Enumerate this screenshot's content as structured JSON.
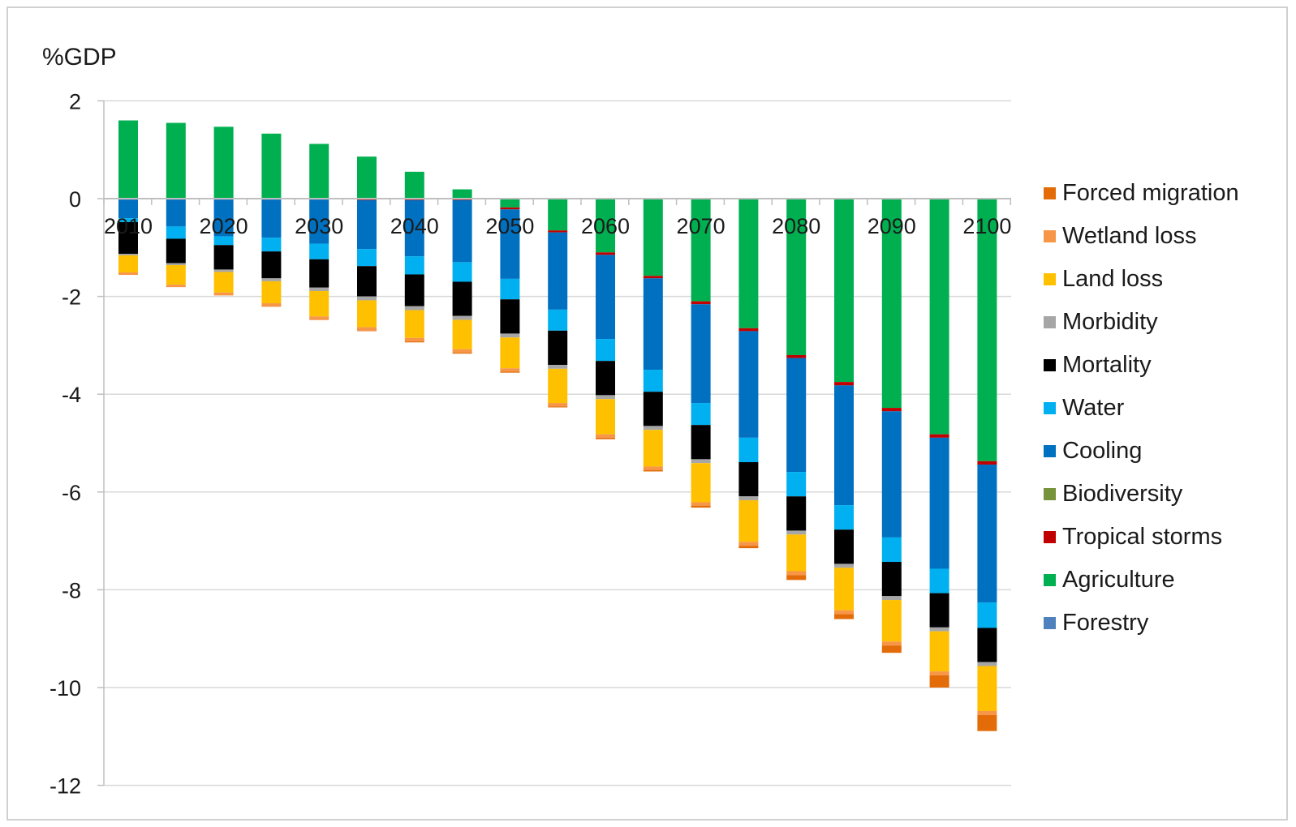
{
  "chart_data": {
    "type": "bar",
    "stacked": true,
    "ylabel": "%GDP",
    "ylim": [
      -12,
      2
    ],
    "yticks": [
      2,
      0,
      -2,
      -4,
      -6,
      -8,
      -10,
      -12
    ],
    "x": [
      2010,
      2015,
      2020,
      2025,
      2030,
      2035,
      2040,
      2045,
      2050,
      2055,
      2060,
      2065,
      2070,
      2075,
      2080,
      2085,
      2090,
      2095,
      2100
    ],
    "xtick_labels": [
      "2010",
      "2020",
      "2030",
      "2040",
      "2050",
      "2060",
      "2070",
      "2080",
      "2090",
      "2100"
    ],
    "gridlines": true,
    "legend_position": "right",
    "series": [
      {
        "name": "Forestry",
        "color": "#4f81bd",
        "values": [
          0,
          0,
          0,
          0,
          0,
          0,
          0,
          0,
          0,
          0,
          0,
          0,
          0,
          0,
          0,
          0,
          0,
          0,
          0
        ]
      },
      {
        "name": "Agriculture",
        "color": "#00b050",
        "values": [
          1.6,
          1.55,
          1.47,
          1.33,
          1.12,
          0.86,
          0.55,
          0.19,
          -0.18,
          -0.65,
          -1.1,
          -1.58,
          -2.1,
          -2.65,
          -3.2,
          -3.75,
          -4.28,
          -4.82,
          -5.37
        ]
      },
      {
        "name": "Tropical storms",
        "color": "#c00000",
        "values": [
          -0.02,
          -0.02,
          -0.02,
          -0.02,
          -0.02,
          -0.03,
          -0.03,
          -0.03,
          -0.04,
          -0.04,
          -0.05,
          -0.05,
          -0.06,
          -0.06,
          -0.06,
          -0.07,
          -0.07,
          -0.07,
          -0.07
        ]
      },
      {
        "name": "Biodiversity",
        "color": "#77933c",
        "values": [
          0,
          0,
          0,
          0,
          0,
          0,
          0,
          0,
          0,
          0,
          0,
          0,
          0,
          0,
          0,
          0,
          0,
          0,
          0
        ]
      },
      {
        "name": "Cooling",
        "color": "#0070c0",
        "values": [
          -0.38,
          -0.55,
          -0.75,
          -0.78,
          -0.9,
          -1.0,
          -1.15,
          -1.27,
          -1.42,
          -1.58,
          -1.72,
          -1.87,
          -2.02,
          -2.18,
          -2.33,
          -2.45,
          -2.58,
          -2.68,
          -2.82
        ]
      },
      {
        "name": "Water",
        "color": "#00b0f0",
        "values": [
          -0.08,
          -0.25,
          -0.18,
          -0.28,
          -0.32,
          -0.35,
          -0.37,
          -0.4,
          -0.42,
          -0.43,
          -0.45,
          -0.45,
          -0.45,
          -0.5,
          -0.5,
          -0.5,
          -0.5,
          -0.5,
          -0.52
        ]
      },
      {
        "name": "Mortality",
        "color": "#000000",
        "values": [
          -0.65,
          -0.5,
          -0.5,
          -0.55,
          -0.58,
          -0.62,
          -0.65,
          -0.7,
          -0.7,
          -0.7,
          -0.7,
          -0.7,
          -0.7,
          -0.7,
          -0.7,
          -0.7,
          -0.7,
          -0.7,
          -0.7
        ]
      },
      {
        "name": "Morbidity",
        "color": "#a6a6a6",
        "values": [
          -0.03,
          -0.04,
          -0.05,
          -0.06,
          -0.07,
          -0.08,
          -0.08,
          -0.08,
          -0.08,
          -0.08,
          -0.08,
          -0.08,
          -0.08,
          -0.08,
          -0.08,
          -0.08,
          -0.08,
          -0.08,
          -0.08
        ]
      },
      {
        "name": "Land loss",
        "color": "#ffc000",
        "values": [
          -0.35,
          -0.4,
          -0.42,
          -0.45,
          -0.52,
          -0.55,
          -0.57,
          -0.6,
          -0.63,
          -0.7,
          -0.72,
          -0.75,
          -0.8,
          -0.85,
          -0.75,
          -0.87,
          -0.85,
          -0.82,
          -0.92
        ]
      },
      {
        "name": "Wetland loss",
        "color": "#f79646",
        "values": [
          -0.05,
          -0.05,
          -0.06,
          -0.06,
          -0.06,
          -0.07,
          -0.07,
          -0.07,
          -0.07,
          -0.07,
          -0.07,
          -0.07,
          -0.07,
          -0.08,
          -0.08,
          -0.08,
          -0.08,
          -0.08,
          -0.08
        ]
      },
      {
        "name": "Forced migration",
        "color": "#e36c09",
        "values": [
          0,
          0,
          0,
          -0.01,
          -0.01,
          -0.01,
          -0.02,
          -0.02,
          -0.02,
          -0.02,
          -0.03,
          -0.03,
          -0.04,
          -0.05,
          -0.1,
          -0.1,
          -0.15,
          -0.25,
          -0.33
        ]
      }
    ],
    "legend_order": [
      "Forced migration",
      "Wetland loss",
      "Land loss",
      "Morbidity",
      "Mortality",
      "Water",
      "Cooling",
      "Biodiversity",
      "Tropical storms",
      "Agriculture",
      "Forestry"
    ]
  }
}
